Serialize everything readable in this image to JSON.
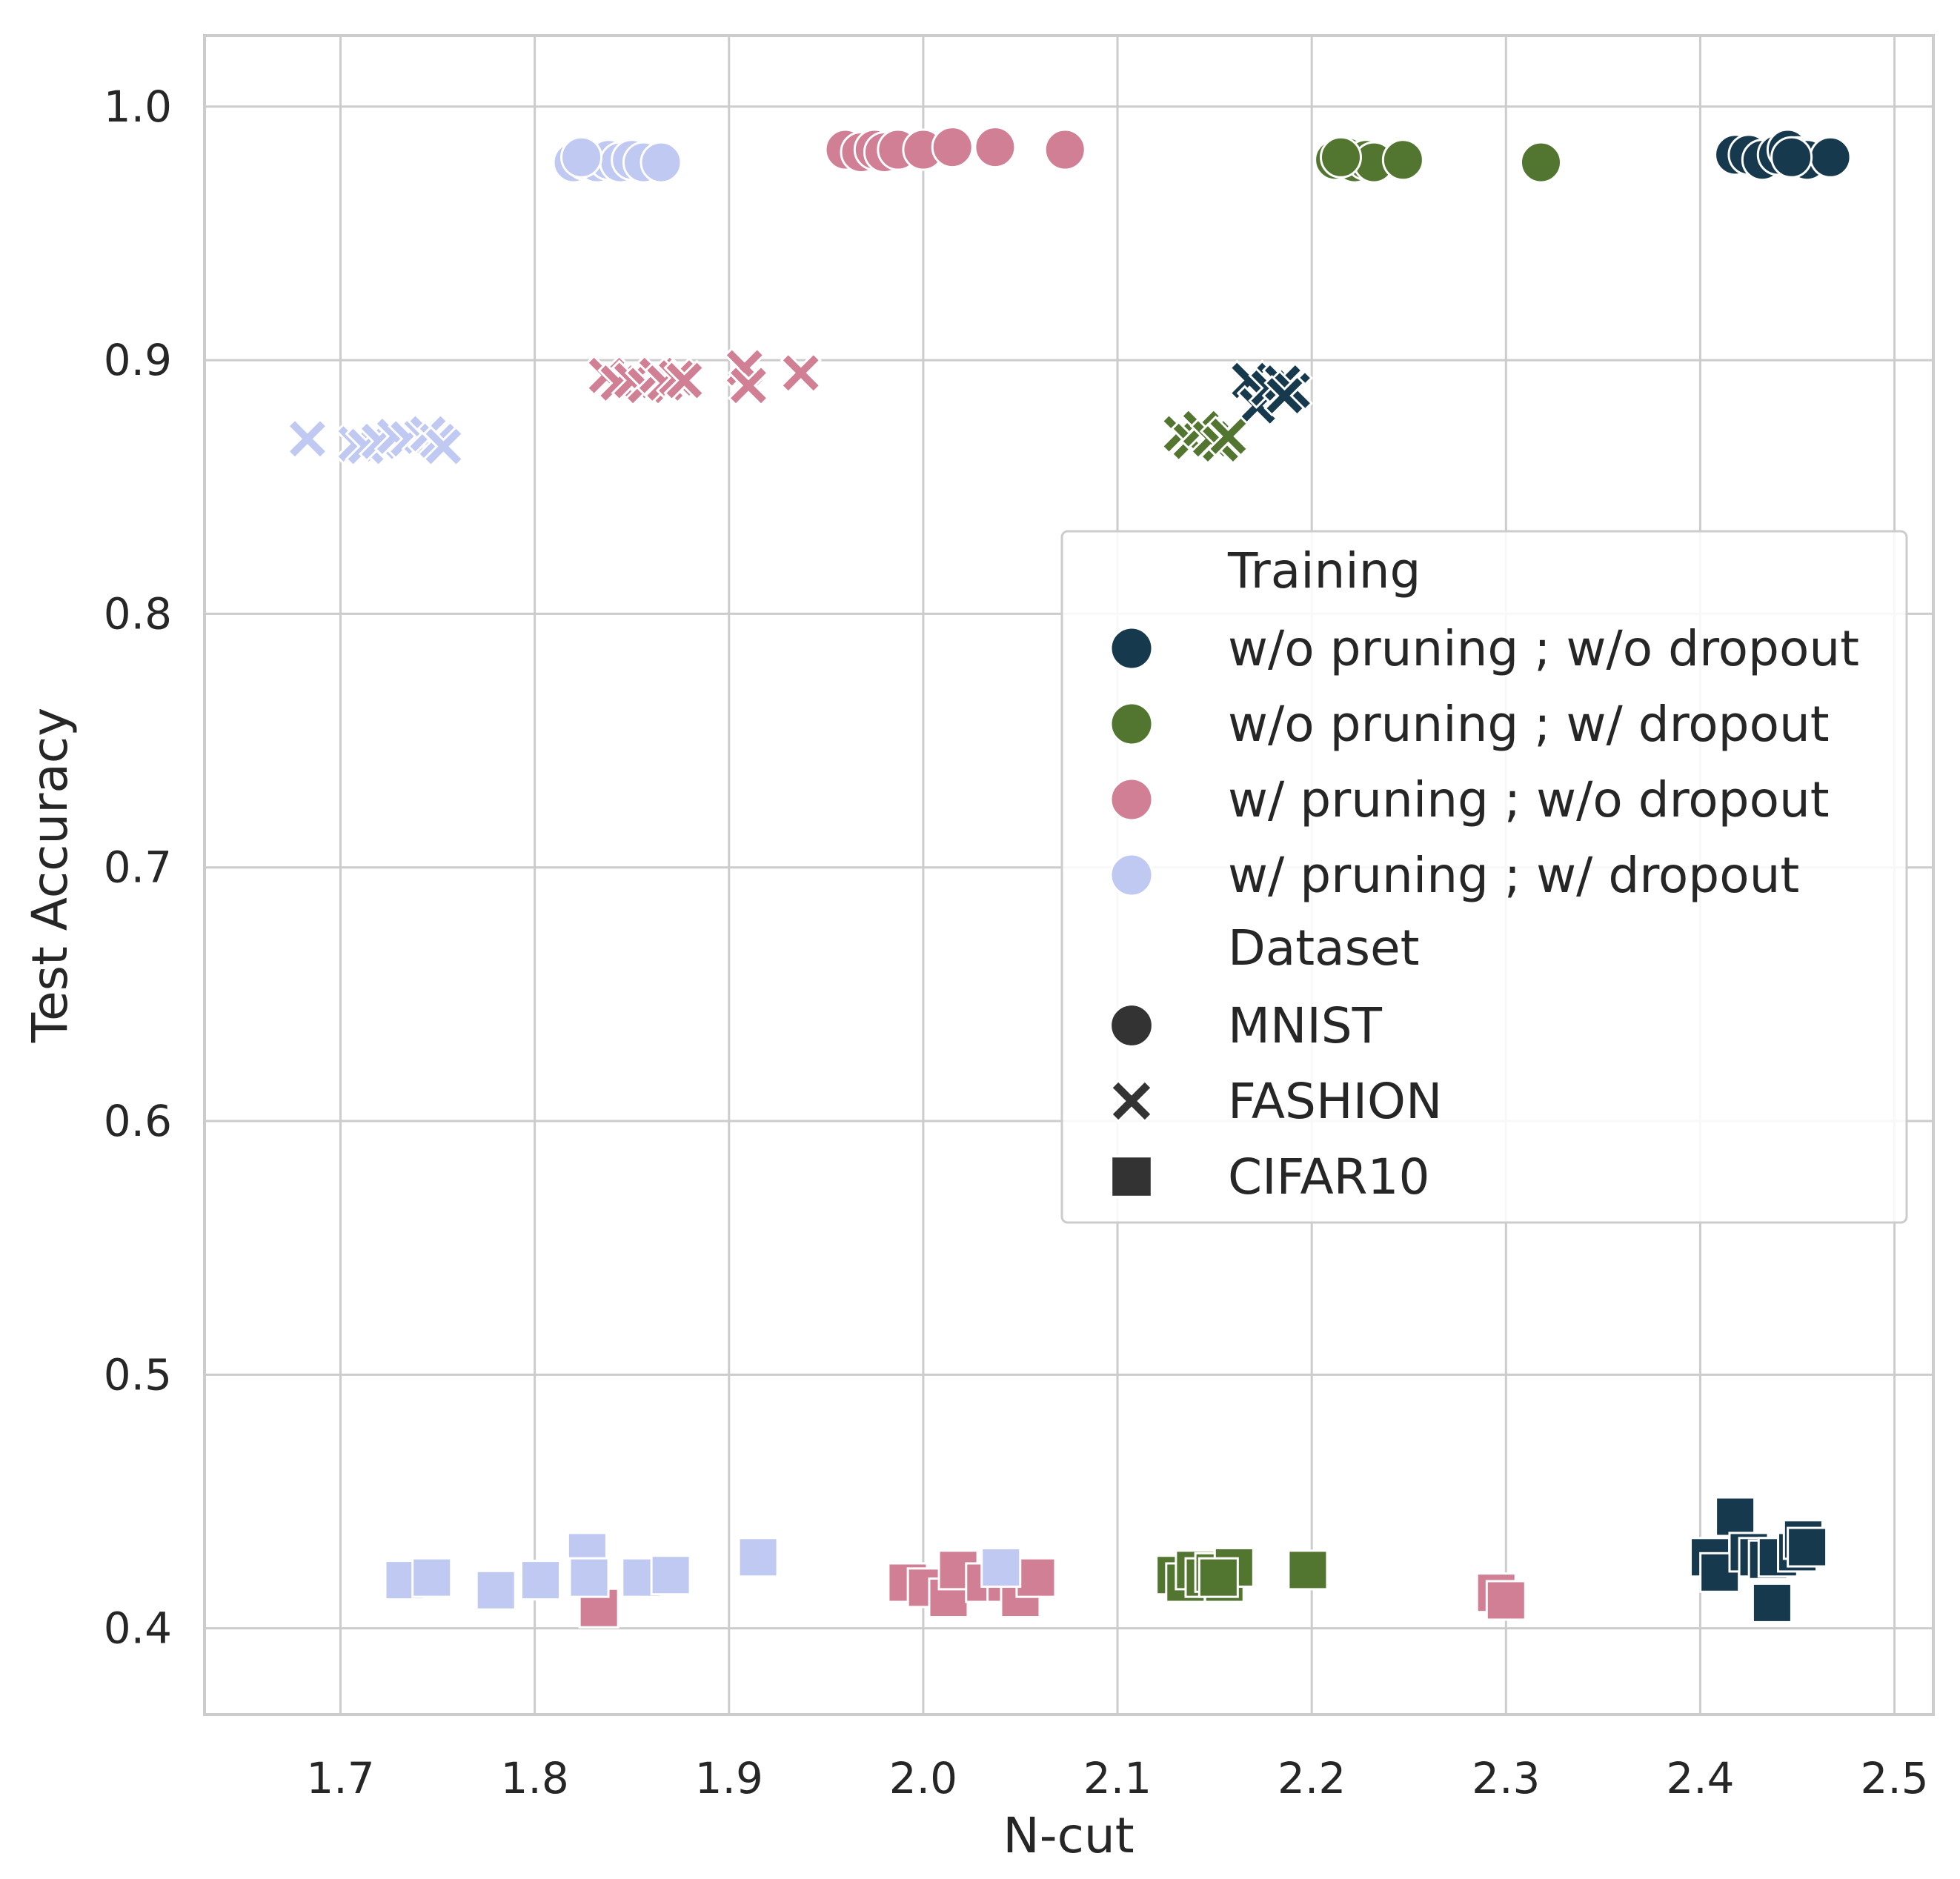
{
  "chart_data": {
    "type": "scatter",
    "title": "",
    "xlabel": "N-cut",
    "ylabel": "Test Accuracy",
    "xlim": [
      1.63,
      2.52
    ],
    "ylim": [
      0.366,
      1.028
    ],
    "xticks": [
      "1.7",
      "1.8",
      "1.9",
      "2.0",
      "2.1",
      "2.2",
      "2.3",
      "2.4",
      "2.5"
    ],
    "yticks": [
      "0.4",
      "0.5",
      "0.6",
      "0.7",
      "0.8",
      "0.9",
      "1.0"
    ],
    "grid": true,
    "legend_position": "center-right",
    "legend": {
      "hue_title": "Training",
      "style_title": "Dataset",
      "hue_entries": [
        {
          "label": "w/o pruning ; w/o dropout",
          "color": "#17394d"
        },
        {
          "label": "w/o pruning ; w/ dropout",
          "color": "#527530"
        },
        {
          "label": "w/ pruning ; w/o dropout",
          "color": "#d17f95"
        },
        {
          "label": "w/ pruning ; w/ dropout",
          "color": "#c0c9f1"
        }
      ],
      "style_entries": [
        {
          "label": "MNIST",
          "marker": "circle"
        },
        {
          "label": "FASHION",
          "marker": "x"
        },
        {
          "label": "CIFAR10",
          "marker": "square"
        }
      ]
    },
    "series": [
      {
        "name": "w/o pruning ; w/o dropout",
        "dataset": "MNIST",
        "color": "#17394d",
        "marker": "circle",
        "x": [
          2.418,
          2.425,
          2.432,
          2.44,
          2.445,
          2.45,
          2.455,
          2.467,
          2.447
        ],
        "y": [
          0.981,
          0.981,
          0.979,
          0.981,
          0.983,
          0.98,
          0.979,
          0.98,
          0.98
        ]
      },
      {
        "name": "w/o pruning ; w/o dropout",
        "dataset": "FASHION",
        "color": "#17394d",
        "marker": "x",
        "x": [
          2.168,
          2.172,
          2.178,
          2.185,
          2.19,
          2.186
        ],
        "y": [
          0.892,
          0.882,
          0.889,
          0.891,
          0.888,
          0.886
        ]
      },
      {
        "name": "w/o pruning ; w/o dropout",
        "dataset": "CIFAR10",
        "color": "#17394d",
        "marker": "square",
        "x": [
          2.405,
          2.41,
          2.418,
          2.425,
          2.43,
          2.435,
          2.44,
          2.45,
          2.453,
          2.437,
          2.455
        ],
        "y": [
          0.428,
          0.422,
          0.444,
          0.43,
          0.428,
          0.427,
          0.428,
          0.43,
          0.435,
          0.41,
          0.432
        ]
      },
      {
        "name": "w/o pruning ; w/ dropout",
        "dataset": "MNIST",
        "color": "#527530",
        "marker": "circle",
        "x": [
          2.212,
          2.218,
          2.222,
          2.228,
          2.232,
          2.247,
          2.318,
          2.215
        ],
        "y": [
          0.979,
          0.98,
          0.978,
          0.979,
          0.978,
          0.979,
          0.978,
          0.98
        ]
      },
      {
        "name": "w/o pruning ; w/ dropout",
        "dataset": "FASHION",
        "color": "#527530",
        "marker": "x",
        "x": [
          2.133,
          2.138,
          2.143,
          2.148,
          2.153,
          2.157
        ],
        "y": [
          0.871,
          0.868,
          0.873,
          0.869,
          0.867,
          0.87
        ]
      },
      {
        "name": "w/o pruning ; w/ dropout",
        "dataset": "CIFAR10",
        "color": "#527530",
        "marker": "square",
        "x": [
          2.13,
          2.135,
          2.14,
          2.145,
          2.15,
          2.155,
          2.16,
          2.198,
          2.152
        ],
        "y": [
          0.421,
          0.418,
          0.423,
          0.42,
          0.422,
          0.418,
          0.424,
          0.423,
          0.42
        ]
      },
      {
        "name": "w/ pruning ; w/o dropout",
        "dataset": "MNIST",
        "color": "#d17f95",
        "marker": "circle",
        "x": [
          1.96,
          1.968,
          1.975,
          1.98,
          1.987,
          2.0,
          2.015,
          2.037,
          2.073
        ],
        "y": [
          0.983,
          0.982,
          0.983,
          0.982,
          0.983,
          0.983,
          0.984,
          0.984,
          0.983
        ]
      },
      {
        "name": "w/ pruning ; w/o dropout",
        "dataset": "FASHION",
        "color": "#d17f95",
        "marker": "x",
        "x": [
          1.837,
          1.843,
          1.85,
          1.857,
          1.863,
          1.867,
          1.873,
          1.877,
          1.908,
          1.91,
          1.937
        ],
        "y": [
          0.894,
          0.891,
          0.892,
          0.89,
          0.894,
          0.891,
          0.893,
          0.892,
          0.897,
          0.89,
          0.895
        ]
      },
      {
        "name": "w/ pruning ; w/o dropout",
        "dataset": "CIFAR10",
        "color": "#d17f95",
        "marker": "square",
        "x": [
          1.833,
          1.992,
          2.002,
          2.013,
          2.018,
          2.032,
          2.043,
          2.05,
          2.058,
          2.295,
          2.3
        ],
        "y": [
          0.408,
          0.418,
          0.416,
          0.412,
          0.423,
          0.418,
          0.418,
          0.412,
          0.42,
          0.414,
          0.411
        ]
      },
      {
        "name": "w/ pruning ; w/ dropout",
        "dataset": "MNIST",
        "color": "#c0c9f1",
        "marker": "circle",
        "x": [
          1.82,
          1.826,
          1.832,
          1.838,
          1.844,
          1.85,
          1.856,
          1.865,
          1.824
        ],
        "y": [
          0.978,
          0.979,
          0.978,
          0.979,
          0.978,
          0.979,
          0.978,
          0.978,
          0.98
        ]
      },
      {
        "name": "w/ pruning ; w/ dropout",
        "dataset": "FASHION",
        "color": "#c0c9f1",
        "marker": "x",
        "x": [
          1.683,
          1.708,
          1.713,
          1.72,
          1.728,
          1.735,
          1.742,
          1.745,
          1.75,
          1.753
        ],
        "y": [
          0.869,
          0.867,
          0.866,
          0.868,
          0.87,
          0.869,
          0.87,
          0.871,
          0.868,
          0.866
        ]
      },
      {
        "name": "w/ pruning ; w/ dropout",
        "dataset": "CIFAR10",
        "color": "#c0c9f1",
        "marker": "square",
        "x": [
          1.733,
          1.747,
          1.78,
          1.803,
          1.827,
          1.828,
          1.855,
          1.87,
          1.915,
          2.04
        ],
        "y": [
          0.419,
          0.42,
          0.415,
          0.419,
          0.43,
          0.42,
          0.42,
          0.421,
          0.428,
          0.424
        ]
      }
    ]
  }
}
